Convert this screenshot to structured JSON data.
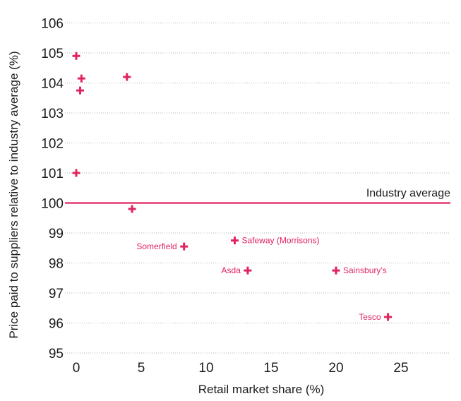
{
  "chart_data": {
    "type": "scatter",
    "xlabel": "Retail market share (%)",
    "ylabel": "Price paid to suppliers relative to industry average (%)",
    "xlim": [
      -1,
      29
    ],
    "ylim": [
      94.7,
      106.3
    ],
    "x_ticks": [
      0,
      5,
      10,
      15,
      20,
      25
    ],
    "y_ticks": [
      95,
      96,
      97,
      98,
      99,
      100,
      101,
      102,
      103,
      104,
      105,
      106
    ],
    "grid": "horizontal",
    "marker_color": "#e0245e",
    "marker": "plus",
    "reference_line": {
      "y": 100,
      "label": "Industry average",
      "color": "#e0245e"
    },
    "points": [
      {
        "x": 0.0,
        "y": 104.9,
        "label": ""
      },
      {
        "x": 0.4,
        "y": 104.15,
        "label": ""
      },
      {
        "x": 0.3,
        "y": 103.75,
        "label": ""
      },
      {
        "x": 3.9,
        "y": 104.2,
        "label": ""
      },
      {
        "x": 0.0,
        "y": 101.0,
        "label": ""
      },
      {
        "x": 4.3,
        "y": 99.8,
        "label": ""
      },
      {
        "x": 8.3,
        "y": 98.55,
        "label": "Somerfield",
        "label_side": "left"
      },
      {
        "x": 12.2,
        "y": 98.75,
        "label": "Safeway (Morrisons)",
        "label_side": "right"
      },
      {
        "x": 13.2,
        "y": 97.75,
        "label": "Asda",
        "label_side": "left"
      },
      {
        "x": 20.0,
        "y": 97.75,
        "label": "Sainsbury’s",
        "label_side": "right"
      },
      {
        "x": 24.0,
        "y": 96.2,
        "label": "Tesco",
        "label_side": "left"
      }
    ]
  }
}
